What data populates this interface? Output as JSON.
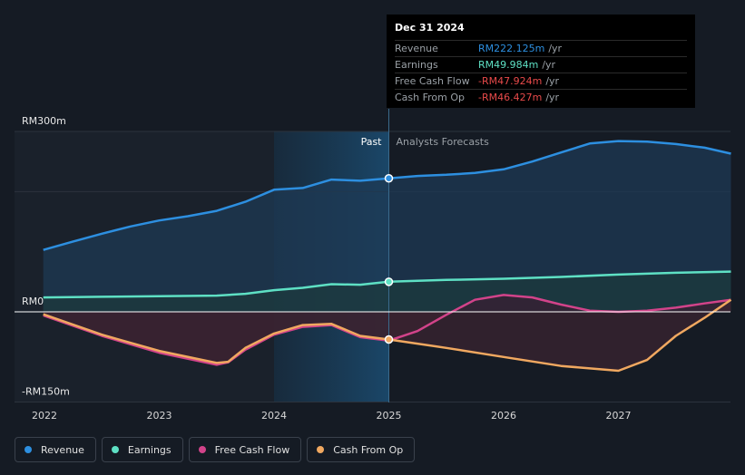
{
  "chart_data": {
    "type": "line",
    "x_range": [
      2021.9,
      2028.0
    ],
    "ylim": [
      -150,
      300
    ],
    "y_axis_labels": [
      {
        "value": 300,
        "text": "RM300m"
      },
      {
        "value": 0,
        "text": "RM0"
      },
      {
        "value": -150,
        "text": "-RM150m"
      }
    ],
    "x_ticks": [
      {
        "value": 2022,
        "label": "2022"
      },
      {
        "value": 2023,
        "label": "2023"
      },
      {
        "value": 2024,
        "label": "2024"
      },
      {
        "value": 2025,
        "label": "2025"
      },
      {
        "value": 2026,
        "label": "2026"
      },
      {
        "value": 2027,
        "label": "2027"
      }
    ],
    "divider_x": 2025.0,
    "highlight_start_x": 2024.0,
    "past_label": "Past",
    "forecast_label": "Analysts Forecasts",
    "series": [
      {
        "name": "Revenue",
        "color": "#2d8fe0",
        "fill": "#1e3a54",
        "points": [
          [
            2021.99,
            103
          ],
          [
            2022.25,
            117
          ],
          [
            2022.5,
            130
          ],
          [
            2022.75,
            142
          ],
          [
            2023.0,
            152
          ],
          [
            2023.25,
            159
          ],
          [
            2023.5,
            168
          ],
          [
            2023.75,
            183
          ],
          [
            2024.0,
            203
          ],
          [
            2024.25,
            206
          ],
          [
            2024.5,
            220
          ],
          [
            2024.75,
            218
          ],
          [
            2025.0,
            222
          ],
          [
            2025.25,
            226
          ],
          [
            2025.5,
            228
          ],
          [
            2025.75,
            231
          ],
          [
            2026.0,
            237
          ],
          [
            2026.25,
            250
          ],
          [
            2026.5,
            265
          ],
          [
            2026.75,
            280
          ],
          [
            2027.0,
            284
          ],
          [
            2027.25,
            283
          ],
          [
            2027.5,
            279
          ],
          [
            2027.75,
            273
          ],
          [
            2027.98,
            263
          ]
        ]
      },
      {
        "name": "Earnings",
        "color": "#5ee0c4",
        "fill": "#1c3a3c",
        "points": [
          [
            2021.99,
            24
          ],
          [
            2022.5,
            25
          ],
          [
            2023.0,
            26
          ],
          [
            2023.5,
            27
          ],
          [
            2023.75,
            30
          ],
          [
            2024.0,
            36
          ],
          [
            2024.25,
            40
          ],
          [
            2024.5,
            46
          ],
          [
            2024.75,
            45
          ],
          [
            2025.0,
            50
          ],
          [
            2025.5,
            53
          ],
          [
            2026.0,
            55
          ],
          [
            2026.5,
            58
          ],
          [
            2027.0,
            62
          ],
          [
            2027.5,
            65
          ],
          [
            2027.98,
            67
          ]
        ]
      },
      {
        "name": "Free Cash Flow",
        "color": "#d2438a",
        "fill": "#3a1f33",
        "points": [
          [
            2021.99,
            -6
          ],
          [
            2022.5,
            -40
          ],
          [
            2023.0,
            -68
          ],
          [
            2023.5,
            -88
          ],
          [
            2023.6,
            -84
          ],
          [
            2023.75,
            -63
          ],
          [
            2024.0,
            -38
          ],
          [
            2024.25,
            -25
          ],
          [
            2024.5,
            -22
          ],
          [
            2024.75,
            -42
          ],
          [
            2025.0,
            -48
          ],
          [
            2025.25,
            -32
          ],
          [
            2025.5,
            -5
          ],
          [
            2025.75,
            20
          ],
          [
            2026.0,
            28
          ],
          [
            2026.25,
            24
          ],
          [
            2026.5,
            12
          ],
          [
            2026.75,
            2
          ],
          [
            2027.0,
            0
          ],
          [
            2027.25,
            2
          ],
          [
            2027.5,
            7
          ],
          [
            2027.75,
            14
          ],
          [
            2027.98,
            20
          ]
        ]
      },
      {
        "name": "Cash From Op",
        "color": "#f0a860",
        "fill": "#3a2430",
        "points": [
          [
            2021.99,
            -4
          ],
          [
            2022.5,
            -38
          ],
          [
            2023.0,
            -65
          ],
          [
            2023.5,
            -85
          ],
          [
            2023.6,
            -83
          ],
          [
            2023.75,
            -60
          ],
          [
            2024.0,
            -36
          ],
          [
            2024.25,
            -22
          ],
          [
            2024.5,
            -20
          ],
          [
            2024.75,
            -40
          ],
          [
            2025.0,
            -46
          ],
          [
            2025.5,
            -60
          ],
          [
            2026.0,
            -75
          ],
          [
            2026.5,
            -90
          ],
          [
            2027.0,
            -98
          ],
          [
            2027.25,
            -80
          ],
          [
            2027.5,
            -40
          ],
          [
            2027.75,
            -10
          ],
          [
            2027.98,
            20
          ]
        ]
      }
    ],
    "markers": [
      {
        "series": "Revenue",
        "x": 2025.0,
        "y": 222,
        "color": "#2d8fe0"
      },
      {
        "series": "Earnings",
        "x": 2025.0,
        "y": 50,
        "color": "#5ee0c4"
      },
      {
        "series": "Cash From Op",
        "x": 2025.0,
        "y": -46,
        "color": "#f0a860"
      }
    ]
  },
  "tooltip": {
    "date": "Dec 31 2024",
    "rows": [
      {
        "name": "Revenue",
        "value": "RM222.125m",
        "unit": "/yr",
        "color": "#2d8fe0"
      },
      {
        "name": "Earnings",
        "value": "RM49.984m",
        "unit": "/yr",
        "color": "#5ee0c4"
      },
      {
        "name": "Free Cash Flow",
        "value": "-RM47.924m",
        "unit": "/yr",
        "color": "#e84a4a"
      },
      {
        "name": "Cash From Op",
        "value": "-RM46.427m",
        "unit": "/yr",
        "color": "#e84a4a"
      }
    ]
  },
  "legend": [
    {
      "name": "Revenue",
      "color": "#2d8fe0"
    },
    {
      "name": "Earnings",
      "color": "#5ee0c4"
    },
    {
      "name": "Free Cash Flow",
      "color": "#d2438a"
    },
    {
      "name": "Cash From Op",
      "color": "#f0a860"
    }
  ]
}
